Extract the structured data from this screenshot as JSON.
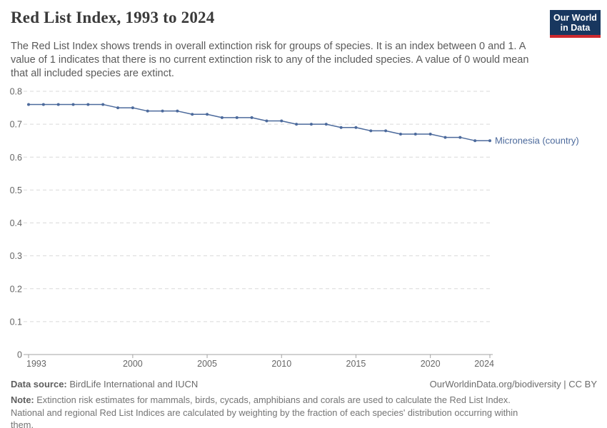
{
  "header": {
    "title": "Red List Index, 1993 to 2024",
    "subtitle": "The Red List Index shows trends in overall extinction risk for groups of species. It is an index between 0 and 1. A value of 1 indicates that there is no current extinction risk to any of the included species. A value of 0 would mean that all included species are extinct.",
    "logo": {
      "line1": "Our World",
      "line2": "in Data"
    }
  },
  "chart_data": {
    "type": "line",
    "title": "Red List Index, 1993 to 2024",
    "years": [
      1993,
      1994,
      1995,
      1996,
      1997,
      1998,
      1999,
      2000,
      2001,
      2002,
      2003,
      2004,
      2005,
      2006,
      2007,
      2008,
      2009,
      2010,
      2011,
      2012,
      2013,
      2014,
      2015,
      2016,
      2017,
      2018,
      2019,
      2020,
      2021,
      2022,
      2023,
      2024
    ],
    "series": [
      {
        "name": "Micronesia (country)",
        "color": "#4C6A9C",
        "values": [
          0.76,
          0.76,
          0.76,
          0.76,
          0.76,
          0.76,
          0.75,
          0.75,
          0.74,
          0.74,
          0.74,
          0.73,
          0.73,
          0.72,
          0.72,
          0.72,
          0.71,
          0.71,
          0.7,
          0.7,
          0.7,
          0.69,
          0.69,
          0.68,
          0.68,
          0.67,
          0.67,
          0.67,
          0.66,
          0.66,
          0.65,
          0.65
        ]
      }
    ],
    "xlabel": "",
    "ylabel": "",
    "xlim": [
      1993,
      2024
    ],
    "ylim": [
      0,
      0.8
    ],
    "y_ticks": [
      0,
      0.1,
      0.2,
      0.3,
      0.4,
      0.5,
      0.6,
      0.7,
      0.8
    ],
    "x_ticks": [
      1993,
      2000,
      2005,
      2010,
      2015,
      2020,
      2024
    ],
    "grid": "horizontal-dashed",
    "legend_position": "end-of-line"
  },
  "footer": {
    "datasource_label": "Data source:",
    "datasource_text": " BirdLife International and IUCN",
    "license": "OurWorldinData.org/biodiversity | CC BY",
    "note_label": "Note:",
    "note_text": " Extinction risk estimates for mammals, birds, cycads, amphibians and corals are used to calculate the Red List Index. National and regional Red List Indices are calculated by weighting by the fraction of each species' distribution occurring within them."
  },
  "colors": {
    "series_blue": "#4C6A9C",
    "gridline": "#d9d9d9",
    "axis": "#a3a3a3",
    "tick_text": "#666666",
    "logo_navy": "#18375f",
    "logo_red": "#cd292e"
  }
}
